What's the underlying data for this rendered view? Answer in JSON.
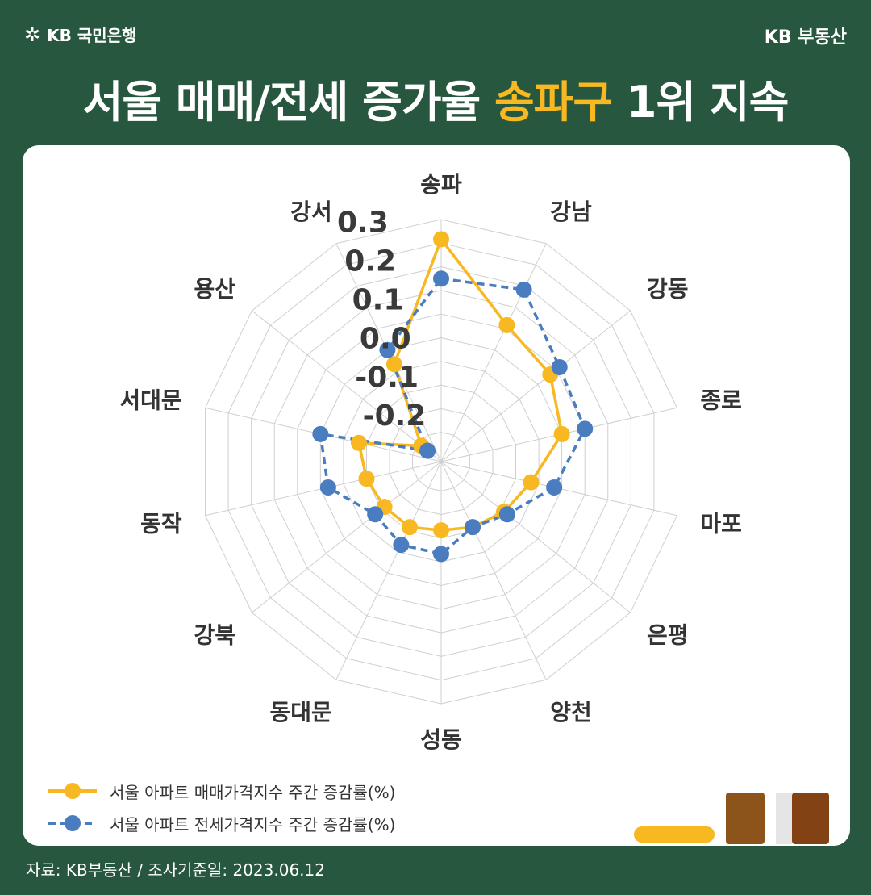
{
  "header": {
    "bank_logo": "KB 국민은행",
    "brand": "KB 부동산",
    "title_prefix": "서울 매매/전세 증가율 ",
    "title_highlight": "송파구",
    "title_suffix": " 1위 지속"
  },
  "colors": {
    "background": "#27573f",
    "sale_series": "#f7b822",
    "jeonse_series": "#4a7cc0",
    "highlight": "#f7b822"
  },
  "chart_data": {
    "type": "radar",
    "categories": [
      "송파",
      "강남",
      "강동",
      "종로",
      "마포",
      "은평",
      "양천",
      "성동",
      "동대문",
      "강북",
      "동작",
      "서대문",
      "용산",
      "강서"
    ],
    "rlim": [
      -0.3,
      0.3
    ],
    "ticks": [
      -0.2,
      -0.1,
      0.0,
      0.1,
      0.2,
      0.3
    ],
    "tick_labels": [
      "-0.2",
      "-0.1",
      "0.0",
      "0.1",
      "0.2",
      "0.3"
    ],
    "series": [
      {
        "name": "서울 아파트 매매가격지수 주간 증감률(%)",
        "style": "solid",
        "color": "#f7b822",
        "values": [
          0.25,
          0.07,
          0.04,
          0.0,
          -0.08,
          -0.11,
          -0.13,
          -0.14,
          -0.13,
          -0.13,
          -0.12,
          -0.1,
          -0.25,
          -0.04
        ]
      },
      {
        "name": "서울 아파트 전세가격지수 주간 증감률(%)",
        "style": "dashed",
        "color": "#4a7cc0",
        "values": [
          0.15,
          0.17,
          0.07,
          0.06,
          -0.02,
          -0.1,
          -0.13,
          -0.08,
          -0.08,
          -0.1,
          -0.02,
          0.0,
          -0.27,
          0.0
        ]
      }
    ]
  },
  "footer": {
    "source": "자료: KB부동산 / 조사기준일: 2023.06.12"
  }
}
